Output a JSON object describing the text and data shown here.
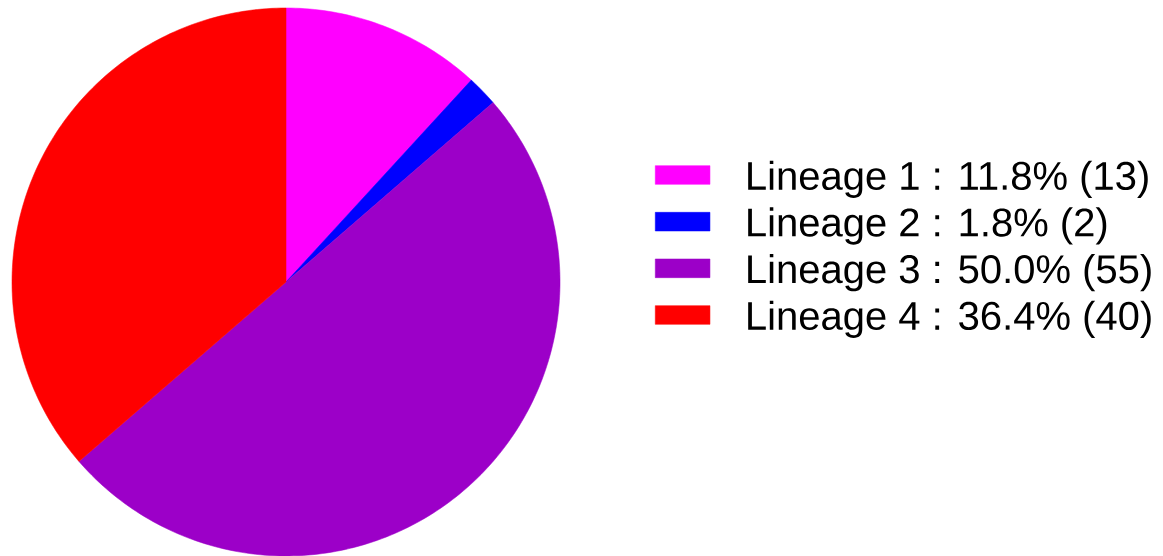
{
  "chart_data": {
    "type": "pie",
    "categories": [
      "Lineage 1 : 11.8%  (13)",
      "Lineage 2 : 1.8%  (2)",
      "Lineage 3 : 50.0%  (55)",
      "Lineage 4 : 36.4%  (40)"
    ],
    "values": [
      13,
      2,
      55,
      40
    ],
    "colors": [
      "#ff00ff",
      "#0000ff",
      "#9c00c8",
      "#ff0000"
    ],
    "legend": "right"
  }
}
